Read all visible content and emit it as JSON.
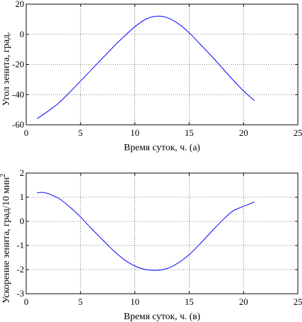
{
  "chart_data": [
    {
      "type": "line",
      "xlabel": "Время суток, ч. (а)",
      "ylabel": "Угол зенита, град.",
      "xlim": [
        0,
        25
      ],
      "ylim": [
        -60,
        20
      ],
      "xticks": [
        0,
        5,
        10,
        15,
        20,
        25
      ],
      "yticks": [
        -60,
        -40,
        -20,
        0,
        20
      ],
      "xtick_labels": [
        "0",
        "5",
        "10",
        "15",
        "20",
        "25"
      ],
      "ytick_labels": [
        "-60",
        "-40",
        "-20",
        "0",
        "20"
      ],
      "grid": true,
      "color": "#0000ff",
      "series": [
        {
          "x": [
            1,
            2,
            3,
            4,
            5,
            6,
            7,
            8,
            9,
            10,
            11,
            12,
            13,
            14,
            15,
            16,
            17,
            18,
            19,
            20,
            21
          ],
          "y": [
            -56,
            -51,
            -45.5,
            -38.5,
            -31,
            -23.5,
            -16,
            -8.5,
            -1.5,
            5,
            10,
            12,
            11,
            7,
            1,
            -6.5,
            -14,
            -22,
            -30,
            -37.5,
            -44
          ]
        }
      ]
    },
    {
      "type": "line",
      "xlabel": "Время суток, ч. (в)",
      "ylabel": "Ускорение зенита, град/10 мин",
      "ylabel_sup": "2",
      "xlim": [
        0,
        25
      ],
      "ylim": [
        -3,
        2
      ],
      "xticks": [
        0,
        5,
        10,
        15,
        20,
        25
      ],
      "yticks": [
        -3,
        -2,
        -1,
        0,
        1,
        2
      ],
      "xtick_labels": [
        "0",
        "5",
        "10",
        "15",
        "20",
        "25"
      ],
      "ytick_labels": [
        "-3",
        "-2",
        "-1",
        "0",
        "1",
        "2"
      ],
      "grid": true,
      "color": "#0000ff",
      "series": [
        {
          "x": [
            1,
            1.5,
            2,
            3,
            4,
            5,
            6,
            7,
            8,
            9,
            10,
            11,
            12,
            13,
            14,
            15,
            16,
            17,
            18,
            19,
            20,
            21
          ],
          "y": [
            1.18,
            1.2,
            1.15,
            0.95,
            0.6,
            0.18,
            -0.3,
            -0.75,
            -1.2,
            -1.58,
            -1.85,
            -2.0,
            -2.03,
            -1.95,
            -1.72,
            -1.38,
            -0.93,
            -0.45,
            0.02,
            0.42,
            0.62,
            0.8
          ]
        }
      ]
    }
  ]
}
